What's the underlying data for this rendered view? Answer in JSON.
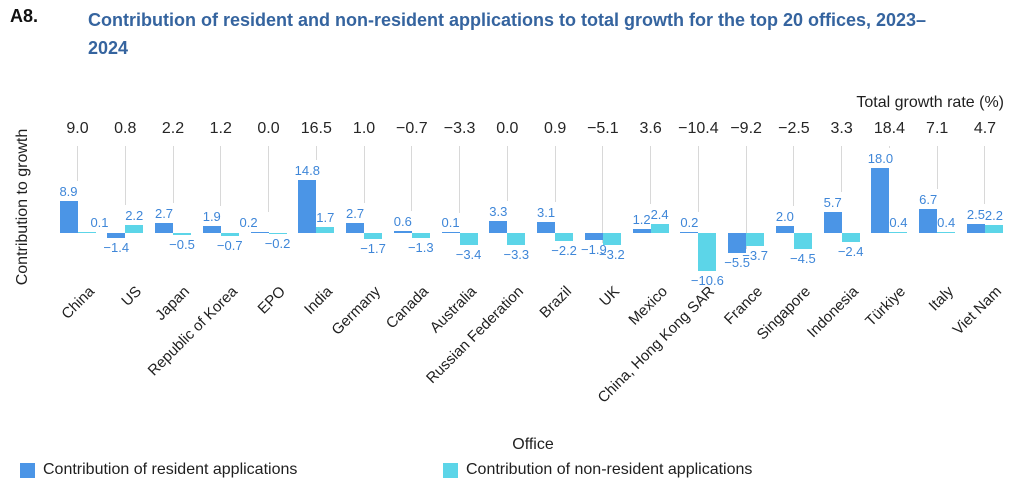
{
  "header": {
    "figure_number": "A8.",
    "title": "Contribution of resident and non-resident applications to total growth for the top 20 offices, 2023–2024"
  },
  "chart_data": {
    "type": "bar",
    "title": "Contribution of resident and non-resident applications to total growth for the top 20 offices, 2023–2024",
    "top_axis_label": "Total growth rate (%)",
    "xlabel": "Office",
    "ylabel": "Contribution to growth",
    "legend_position": "bottom",
    "grid": false,
    "ylim": [
      -12,
      19
    ],
    "categories": [
      "China",
      "US",
      "Japan",
      "Republic of Korea",
      "EPO",
      "India",
      "Germany",
      "Canada",
      "Australia",
      "Russian Federation",
      "Brazil",
      "UK",
      "Mexico",
      "China, Hong Kong SAR",
      "France",
      "Singapore",
      "Indonesia",
      "Türkiye",
      "Italy",
      "Viet Nam"
    ],
    "total_growth_rate": [
      9.0,
      0.8,
      2.2,
      1.2,
      0.0,
      16.5,
      1.0,
      -0.7,
      -3.3,
      0.0,
      0.9,
      -5.1,
      3.6,
      -10.4,
      -9.2,
      -2.5,
      3.3,
      18.4,
      7.1,
      4.7
    ],
    "series": [
      {
        "name": "Contribution of resident applications",
        "color": "#4b95e6",
        "values": [
          8.9,
          -1.4,
          2.7,
          1.9,
          0.2,
          14.8,
          2.7,
          0.6,
          0.1,
          3.3,
          3.1,
          -1.9,
          1.2,
          0.2,
          -5.5,
          2.0,
          5.7,
          18.0,
          6.7,
          2.5
        ]
      },
      {
        "name": "Contribution of non-resident applications",
        "color": "#5cd5e8",
        "values": [
          0.1,
          2.2,
          -0.5,
          -0.7,
          -0.2,
          1.7,
          -1.7,
          -1.3,
          -3.4,
          -3.3,
          -2.2,
          -3.2,
          2.4,
          -10.6,
          -3.7,
          -4.5,
          -2.4,
          0.4,
          0.4,
          2.2
        ]
      }
    ],
    "colors": {
      "value_label": "#3e86d8",
      "leader_line": "#d8d8d8",
      "title": "#35649f"
    }
  }
}
